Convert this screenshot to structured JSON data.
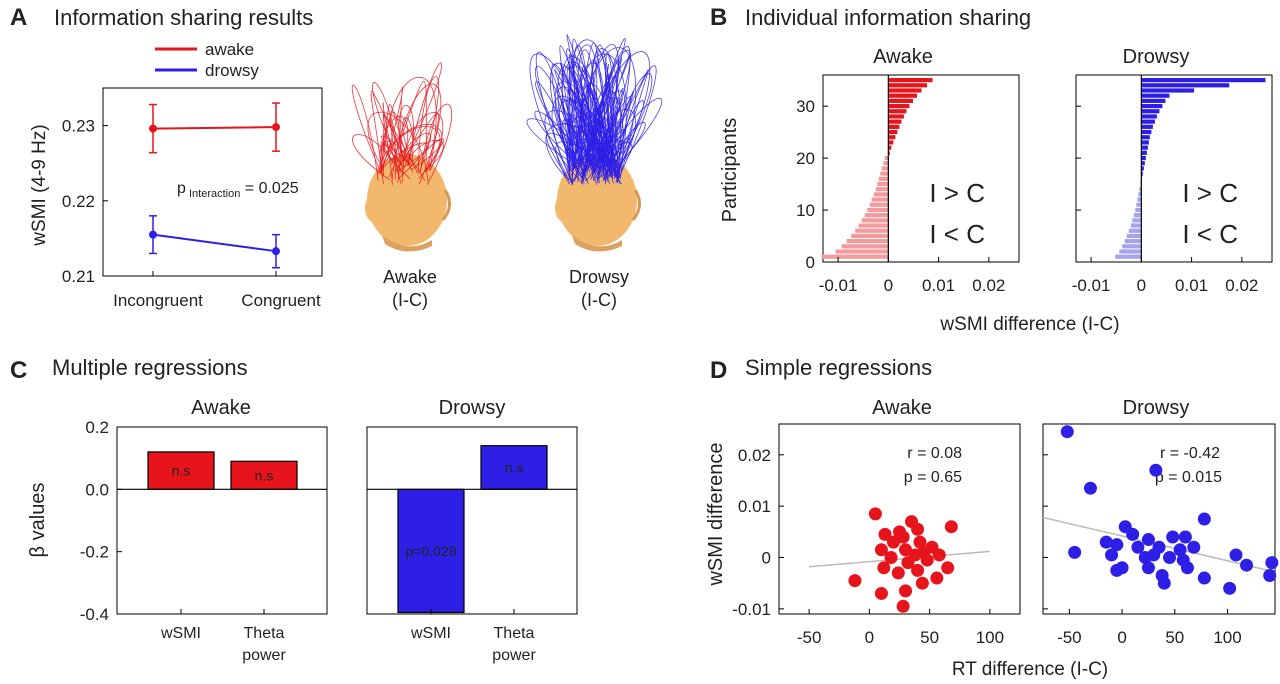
{
  "panels": {
    "A": {
      "letter": "A",
      "title": "Information sharing results",
      "head_awake_label": "Awake",
      "head_drowsy_label": "Drowsy",
      "head_sub_label": "(I-C)",
      "p_prefix": "p",
      "p_sub": "Interaction",
      "p_rest": " = 0.025"
    },
    "B": {
      "letter": "B",
      "title": "Individual information sharing",
      "sub_awake": "Awake",
      "sub_drowsy": "Drowsy",
      "ylabel": "Participants",
      "xlabel": "wSMI difference (I-C)",
      "ann_gt": "I > C",
      "ann_lt": "I < C"
    },
    "C": {
      "letter": "C",
      "title": "Multiple regressions",
      "sub_awake": "Awake",
      "sub_drowsy": "Drowsy",
      "ylabel": "β values"
    },
    "D": {
      "letter": "D",
      "title": "Simple regressions",
      "sub_awake": "Awake",
      "sub_drowsy": "Drowsy",
      "ylabel": "wSMI difference",
      "xlabel": "RT difference (I-C)",
      "stats_awake_r": "r = 0.08",
      "stats_awake_p": "p = 0.65",
      "stats_drowsy_r": "r = -0.42",
      "stats_drowsy_p": "p = 0.015"
    }
  },
  "colors": {
    "awake": "#e8141b",
    "awake_light": "#f59a9c",
    "drowsy": "#2e1fe6",
    "drowsy_light": "#a6a3ee",
    "awake_text_dark": "#d0141b",
    "awake_text_light": "#f4a3a6",
    "drowsy_text_dark": "#1d3e86",
    "drowsy_text_light": "#a9b3dc",
    "fit_line": "#bbbbbb",
    "head": "#f2b86e"
  },
  "chart_data": [
    {
      "id": "A",
      "type": "line",
      "categories": [
        "Incongruent",
        "Congruent"
      ],
      "ylabel": "wSMI (4-9 Hz)",
      "ylim": [
        0.21,
        0.235
      ],
      "yticks": [
        "0.21",
        "0.22",
        "0.23"
      ],
      "series": [
        {
          "name": "awake",
          "values": [
            0.2296,
            0.2298
          ],
          "err": [
            0.0032,
            0.0032
          ]
        },
        {
          "name": "drowsy",
          "values": [
            0.2155,
            0.2133
          ],
          "err": [
            0.0025,
            0.0022
          ]
        }
      ]
    },
    {
      "id": "B-awake",
      "type": "bar",
      "orientation": "horizontal",
      "xlim": [
        -0.013,
        0.026
      ],
      "xticks": [
        "-0.01",
        "0",
        "0.01",
        "0.02"
      ],
      "ylim": [
        0,
        36
      ],
      "yticks": [
        "0",
        "10",
        "20",
        "30"
      ],
      "values": [
        -0.0133,
        -0.0105,
        -0.0093,
        -0.0083,
        -0.0074,
        -0.0066,
        -0.0059,
        -0.0053,
        -0.0047,
        -0.0042,
        -0.0037,
        -0.0033,
        -0.0029,
        -0.0025,
        -0.0022,
        -0.0019,
        -0.0016,
        -0.0013,
        -0.001,
        -0.0007,
        0.0003,
        0.0006,
        0.001,
        0.0014,
        0.0018,
        0.0022,
        0.0026,
        0.0031,
        0.0036,
        0.0042,
        0.0049,
        0.0057,
        0.0066,
        0.0077,
        0.0088
      ]
    },
    {
      "id": "B-drowsy",
      "type": "bar",
      "orientation": "horizontal",
      "xlim": [
        -0.013,
        0.026
      ],
      "xticks": [
        "-0.01",
        "0",
        "0.01",
        "0.02"
      ],
      "ylim": [
        0,
        36
      ],
      "yticks": [
        "0",
        "10",
        "20",
        "30"
      ],
      "values": [
        -0.0052,
        -0.0044,
        -0.0038,
        -0.0033,
        -0.0029,
        -0.0025,
        -0.0021,
        -0.0018,
        -0.0015,
        -0.0012,
        -0.001,
        -0.0008,
        -0.0006,
        -0.0004,
        -0.0002,
        0.0001,
        0.0003,
        0.0005,
        0.0007,
        0.0009,
        0.0011,
        0.0013,
        0.0015,
        0.0017,
        0.002,
        0.0023,
        0.0027,
        0.0031,
        0.0036,
        0.0042,
        0.0048,
        0.0056,
        0.0105,
        0.0175,
        0.0247
      ]
    },
    {
      "id": "C-awake",
      "type": "bar",
      "categories": [
        "wSMI",
        "Theta\npower"
      ],
      "values": [
        0.12,
        0.09
      ],
      "labels": [
        "n.s",
        "n.s"
      ],
      "ylim": [
        -0.4,
        0.2
      ],
      "yticks": [
        "-0.4",
        "-0.2",
        "0.0",
        "0.2"
      ]
    },
    {
      "id": "C-drowsy",
      "type": "bar",
      "categories": [
        "wSMI",
        "Theta\npower"
      ],
      "values": [
        -0.395,
        0.14
      ],
      "labels": [
        "p=0.028",
        "n.s"
      ],
      "ylim": [
        -0.4,
        0.2
      ],
      "yticks": [
        "-0.4",
        "-0.2",
        "0.0",
        "0.2"
      ]
    },
    {
      "id": "D-awake",
      "type": "scatter",
      "xlim": [
        -75,
        125
      ],
      "xticks": [
        "-50",
        "0",
        "50",
        "100"
      ],
      "ylim": [
        -0.011,
        0.026
      ],
      "yticks": [
        "-0.01",
        "0",
        "0.01",
        "0.02"
      ],
      "points": [
        [
          5,
          0.0085
        ],
        [
          35,
          0.007
        ],
        [
          40,
          0.0055
        ],
        [
          68,
          0.006
        ],
        [
          25,
          0.005
        ],
        [
          13,
          0.0045
        ],
        [
          28,
          0.004
        ],
        [
          42,
          0.003
        ],
        [
          20,
          0.003
        ],
        [
          52,
          0.002
        ],
        [
          10,
          0.0015
        ],
        [
          30,
          0.0015
        ],
        [
          45,
          0.001
        ],
        [
          58,
          0.0005
        ],
        [
          38,
          0.0005
        ],
        [
          18,
          0.0
        ],
        [
          48,
          -0.0005
        ],
        [
          32,
          -0.001
        ],
        [
          12,
          -0.002
        ],
        [
          65,
          -0.002
        ],
        [
          24,
          -0.003
        ],
        [
          40,
          -0.0025
        ],
        [
          -12,
          -0.0045
        ],
        [
          56,
          -0.004
        ],
        [
          44,
          -0.005
        ],
        [
          10,
          -0.007
        ],
        [
          30,
          -0.0065
        ],
        [
          28,
          -0.0095
        ]
      ],
      "fit": [
        [
          -50,
          -0.0018
        ],
        [
          100,
          0.0012
        ]
      ]
    },
    {
      "id": "D-drowsy",
      "type": "scatter",
      "xlim": [
        -75,
        145
      ],
      "xticks": [
        "-50",
        "0",
        "50",
        "100"
      ],
      "ylim": [
        -0.011,
        0.026
      ],
      "yticks": [
        "-0.01",
        "0",
        "0.01",
        "0.02"
      ],
      "points": [
        [
          -52,
          0.0245
        ],
        [
          32,
          0.017
        ],
        [
          -30,
          0.0135
        ],
        [
          78,
          0.0075
        ],
        [
          -15,
          0.003
        ],
        [
          -45,
          0.001
        ],
        [
          3,
          0.006
        ],
        [
          10,
          0.0045
        ],
        [
          25,
          0.0035
        ],
        [
          48,
          0.004
        ],
        [
          60,
          0.004
        ],
        [
          -5,
          0.0025
        ],
        [
          15,
          0.002
        ],
        [
          35,
          0.002
        ],
        [
          55,
          0.0015
        ],
        [
          68,
          0.002
        ],
        [
          -10,
          0.0005
        ],
        [
          22,
          0.0
        ],
        [
          45,
          0.0
        ],
        [
          30,
          0.0005
        ],
        [
          58,
          -0.0005
        ],
        [
          0,
          -0.002
        ],
        [
          -5,
          -0.0025
        ],
        [
          25,
          -0.002
        ],
        [
          38,
          -0.0035
        ],
        [
          62,
          -0.002
        ],
        [
          108,
          0.0005
        ],
        [
          118,
          -0.0015
        ],
        [
          142,
          -0.001
        ],
        [
          140,
          -0.0035
        ],
        [
          40,
          -0.005
        ],
        [
          78,
          -0.004
        ],
        [
          102,
          -0.006
        ]
      ],
      "fit": [
        [
          -75,
          0.0078
        ],
        [
          145,
          -0.0028
        ]
      ]
    }
  ]
}
